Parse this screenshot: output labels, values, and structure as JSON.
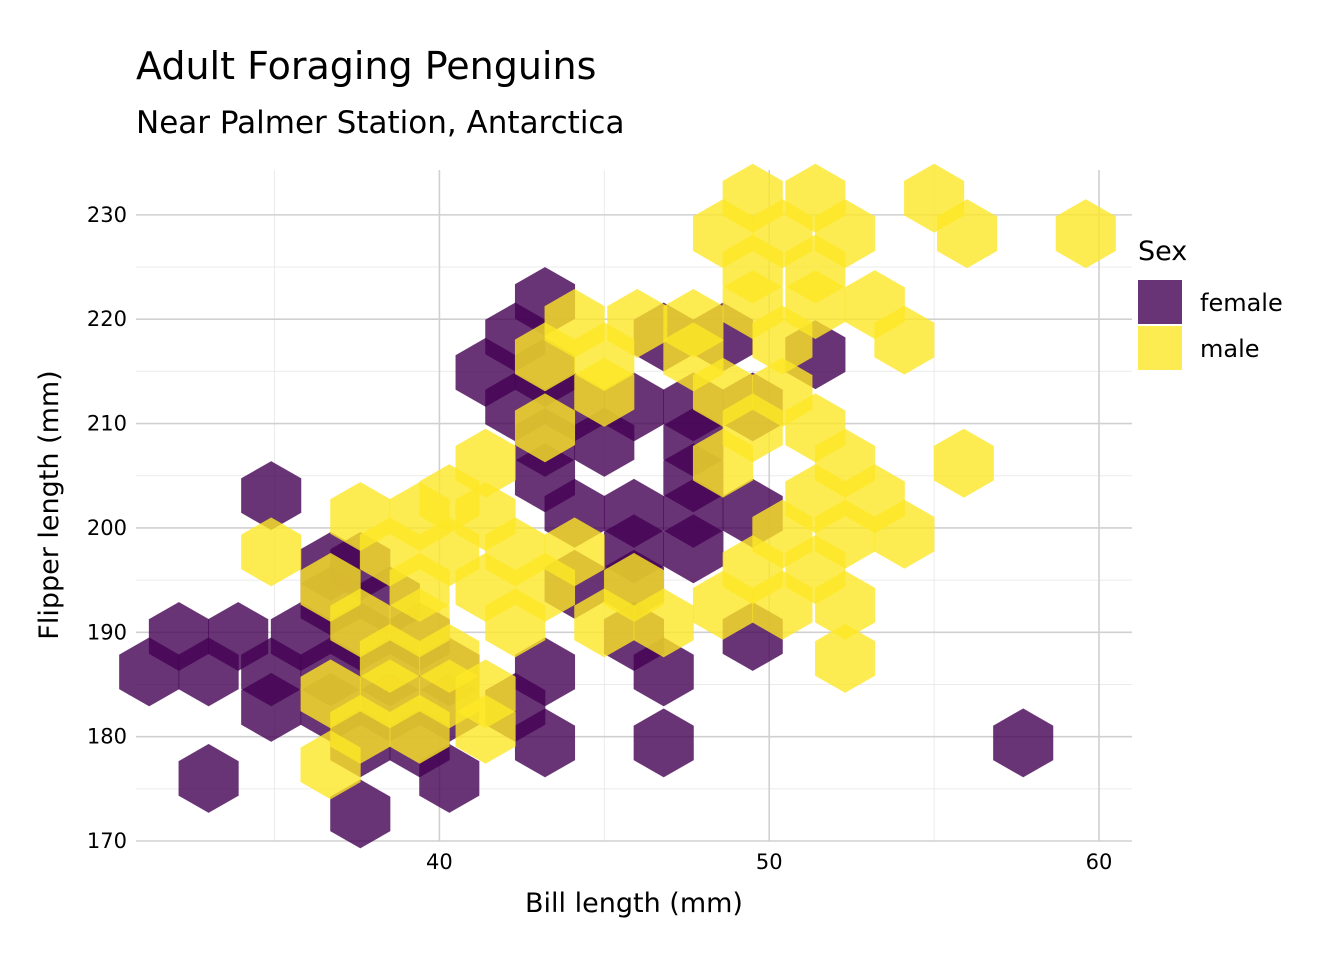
{
  "chart_data": {
    "type": "hexbin",
    "title": "Adult Foraging Penguins",
    "subtitle": "Near Palmer Station, Antarctica",
    "xlabel": "Bill length (mm)",
    "ylabel": "Flipper length (mm)",
    "xlim": [
      30.8,
      61
    ],
    "ylim": [
      170,
      234.3
    ],
    "x_ticks": [
      40,
      50,
      60
    ],
    "y_ticks": [
      170,
      180,
      190,
      200,
      210,
      220,
      230
    ],
    "grid": true,
    "legend": {
      "title": "Sex",
      "placement": "right"
    },
    "series": [
      {
        "name": "female",
        "color": "#440154",
        "opacity": 0.8,
        "points": [
          [
            43.2,
            221.7
          ],
          [
            42.3,
            218.3
          ],
          [
            41.4,
            214.9
          ],
          [
            43.2,
            214.9
          ],
          [
            46.8,
            218.3
          ],
          [
            48.6,
            218.3
          ],
          [
            42.3,
            211.6
          ],
          [
            44.1,
            211.6
          ],
          [
            45.9,
            211.6
          ],
          [
            47.7,
            211.6
          ],
          [
            49.5,
            211.6
          ],
          [
            43.2,
            208.2
          ],
          [
            45.0,
            208.2
          ],
          [
            47.7,
            208.2
          ],
          [
            43.2,
            204.8
          ],
          [
            47.7,
            204.8
          ],
          [
            34.9,
            203.1
          ],
          [
            44.1,
            201.4
          ],
          [
            45.9,
            201.4
          ],
          [
            47.7,
            201.4
          ],
          [
            49.5,
            201.4
          ],
          [
            36.7,
            196.3
          ],
          [
            37.6,
            196.3
          ],
          [
            45.9,
            198.0
          ],
          [
            47.7,
            198.0
          ],
          [
            44.1,
            194.6
          ],
          [
            45.9,
            194.6
          ],
          [
            36.7,
            193.0
          ],
          [
            38.5,
            193.0
          ],
          [
            32.1,
            189.6
          ],
          [
            33.9,
            189.6
          ],
          [
            35.8,
            189.6
          ],
          [
            37.6,
            189.6
          ],
          [
            39.4,
            189.6
          ],
          [
            45.9,
            189.6
          ],
          [
            49.5,
            189.6
          ],
          [
            31.2,
            186.2
          ],
          [
            33.0,
            186.2
          ],
          [
            34.9,
            186.2
          ],
          [
            36.7,
            186.2
          ],
          [
            38.5,
            186.2
          ],
          [
            40.3,
            186.2
          ],
          [
            43.2,
            186.2
          ],
          [
            46.8,
            186.2
          ],
          [
            34.9,
            182.8
          ],
          [
            36.7,
            182.8
          ],
          [
            38.5,
            182.8
          ],
          [
            40.3,
            182.8
          ],
          [
            42.3,
            182.8
          ],
          [
            37.6,
            179.4
          ],
          [
            39.4,
            179.4
          ],
          [
            43.2,
            179.4
          ],
          [
            46.8,
            179.4
          ],
          [
            33.0,
            176.0
          ],
          [
            40.3,
            176.0
          ],
          [
            37.6,
            172.6
          ],
          [
            57.7,
            179.4
          ],
          [
            51.4,
            216.6
          ]
        ]
      },
      {
        "name": "male",
        "color": "#FDE725",
        "opacity": 0.8,
        "points": [
          [
            49.5,
            231.6
          ],
          [
            51.4,
            231.6
          ],
          [
            55.0,
            231.6
          ],
          [
            48.6,
            228.2
          ],
          [
            50.4,
            228.2
          ],
          [
            52.3,
            228.2
          ],
          [
            56.0,
            228.2
          ],
          [
            59.6,
            228.2
          ],
          [
            49.5,
            224.8
          ],
          [
            51.4,
            224.8
          ],
          [
            49.5,
            221.4
          ],
          [
            51.4,
            221.4
          ],
          [
            53.2,
            221.4
          ],
          [
            44.1,
            219.6
          ],
          [
            46.0,
            219.6
          ],
          [
            47.7,
            219.6
          ],
          [
            50.4,
            218.0
          ],
          [
            54.1,
            218.0
          ],
          [
            43.2,
            216.4
          ],
          [
            45.0,
            216.4
          ],
          [
            47.7,
            216.4
          ],
          [
            45.0,
            213.0
          ],
          [
            48.6,
            213.0
          ],
          [
            50.4,
            213.0
          ],
          [
            43.2,
            209.6
          ],
          [
            49.5,
            209.6
          ],
          [
            51.4,
            209.6
          ],
          [
            41.4,
            206.2
          ],
          [
            48.6,
            206.2
          ],
          [
            52.3,
            206.2
          ],
          [
            55.9,
            206.2
          ],
          [
            40.3,
            202.8
          ],
          [
            51.4,
            202.8
          ],
          [
            53.2,
            202.8
          ],
          [
            37.6,
            201.1
          ],
          [
            39.4,
            201.1
          ],
          [
            41.4,
            201.1
          ],
          [
            50.4,
            199.4
          ],
          [
            52.3,
            199.4
          ],
          [
            54.1,
            199.4
          ],
          [
            34.9,
            197.7
          ],
          [
            38.5,
            197.7
          ],
          [
            40.3,
            197.7
          ],
          [
            42.3,
            197.7
          ],
          [
            44.1,
            197.7
          ],
          [
            49.5,
            196.0
          ],
          [
            51.4,
            196.0
          ],
          [
            36.7,
            194.3
          ],
          [
            39.4,
            194.3
          ],
          [
            41.4,
            194.3
          ],
          [
            43.2,
            194.3
          ],
          [
            45.9,
            194.3
          ],
          [
            48.6,
            192.6
          ],
          [
            50.4,
            192.6
          ],
          [
            52.3,
            192.6
          ],
          [
            37.6,
            190.9
          ],
          [
            39.4,
            190.9
          ],
          [
            42.3,
            190.9
          ],
          [
            45.0,
            190.9
          ],
          [
            46.8,
            190.9
          ],
          [
            38.5,
            187.5
          ],
          [
            40.3,
            187.5
          ],
          [
            52.3,
            187.5
          ],
          [
            41.4,
            184.1
          ],
          [
            36.7,
            184.1
          ],
          [
            38.5,
            184.1
          ],
          [
            40.3,
            184.1
          ],
          [
            37.6,
            180.7
          ],
          [
            39.4,
            180.7
          ],
          [
            41.4,
            180.7
          ],
          [
            36.7,
            177.3
          ]
        ]
      }
    ]
  }
}
